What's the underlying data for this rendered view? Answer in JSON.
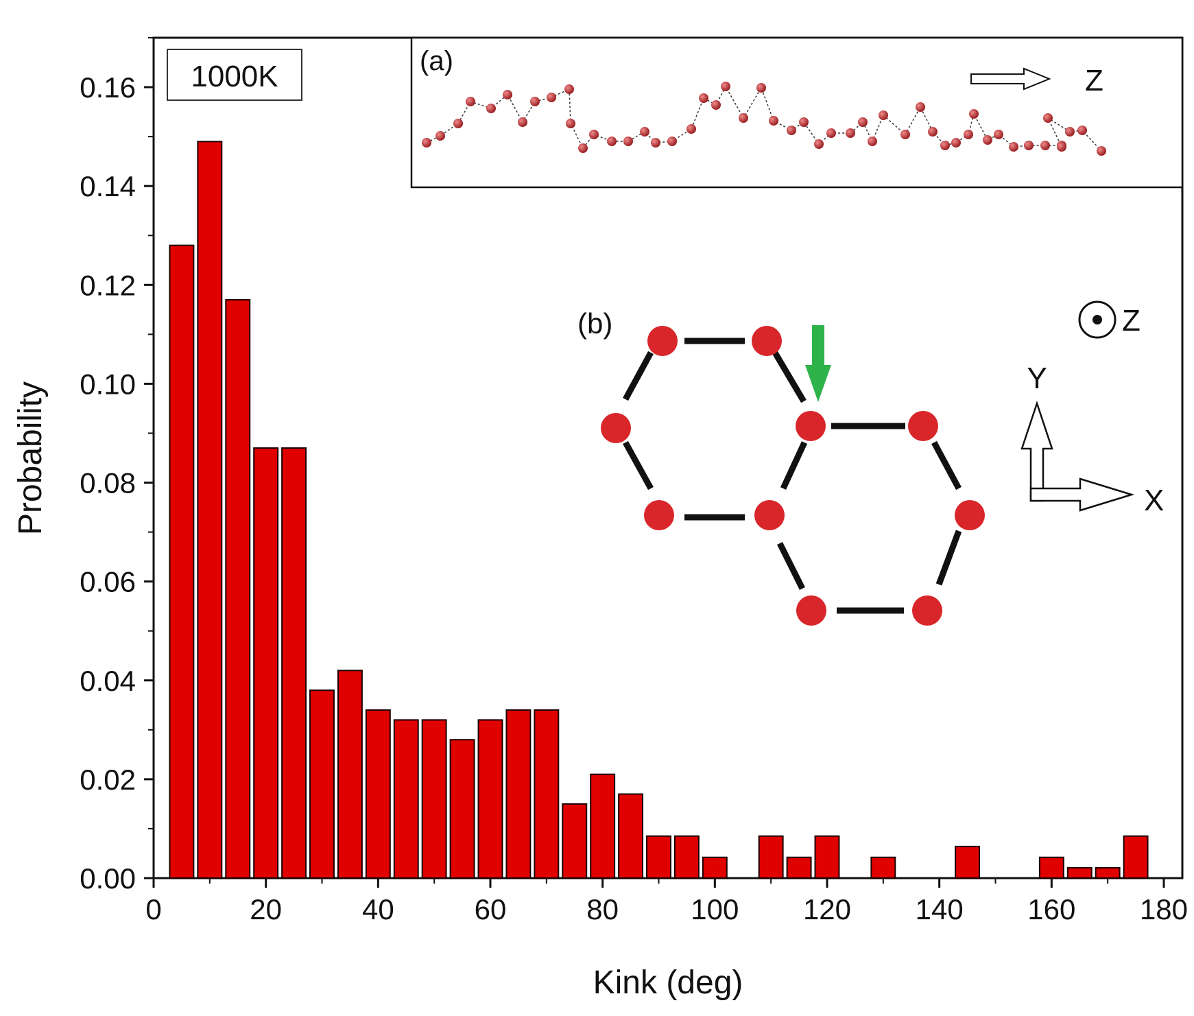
{
  "chart_data": {
    "type": "bar",
    "xlabel": "Kink (deg)",
    "ylabel": "Probability",
    "xlim": [
      0,
      180
    ],
    "ylim": [
      0,
      0.17
    ],
    "xticks": [
      "0",
      "20",
      "40",
      "60",
      "80",
      "100",
      "120",
      "140",
      "160",
      "180"
    ],
    "yticks": [
      "0.00",
      "0.02",
      "0.04",
      "0.06",
      "0.08",
      "0.10",
      "0.12",
      "0.14",
      "0.16"
    ],
    "bin_width": 5,
    "bins": [
      {
        "center": 5,
        "value": 0.128
      },
      {
        "center": 10,
        "value": 0.149
      },
      {
        "center": 15,
        "value": 0.117
      },
      {
        "center": 20,
        "value": 0.087
      },
      {
        "center": 25,
        "value": 0.087
      },
      {
        "center": 30,
        "value": 0.038
      },
      {
        "center": 35,
        "value": 0.042
      },
      {
        "center": 40,
        "value": 0.034
      },
      {
        "center": 45,
        "value": 0.032
      },
      {
        "center": 50,
        "value": 0.032
      },
      {
        "center": 55,
        "value": 0.028
      },
      {
        "center": 60,
        "value": 0.032
      },
      {
        "center": 65,
        "value": 0.034
      },
      {
        "center": 70,
        "value": 0.034
      },
      {
        "center": 75,
        "value": 0.015
      },
      {
        "center": 80,
        "value": 0.021
      },
      {
        "center": 85,
        "value": 0.017
      },
      {
        "center": 90,
        "value": 0.0085
      },
      {
        "center": 95,
        "value": 0.0085
      },
      {
        "center": 100,
        "value": 0.0042
      },
      {
        "center": 110,
        "value": 0.0085
      },
      {
        "center": 115,
        "value": 0.0042
      },
      {
        "center": 120,
        "value": 0.0085
      },
      {
        "center": 130,
        "value": 0.0042
      },
      {
        "center": 145,
        "value": 0.0064
      },
      {
        "center": 160,
        "value": 0.0042
      },
      {
        "center": 165,
        "value": 0.0021
      },
      {
        "center": 170,
        "value": 0.0021
      },
      {
        "center": 175,
        "value": 0.0085
      }
    ],
    "bar_color": "#e00000",
    "annotations": {
      "temperature_label": "1000K",
      "inset_a_label": "(a)",
      "inset_a_axis": "Z",
      "inset_b_label": "(b)",
      "inset_b_z_axis": "Z",
      "inset_b_y_axis": "Y",
      "inset_b_x_axis": "X",
      "atom_color": "#d8262b",
      "chain_atom_color": "#b03030",
      "arrow_color": "#2db34a"
    }
  }
}
